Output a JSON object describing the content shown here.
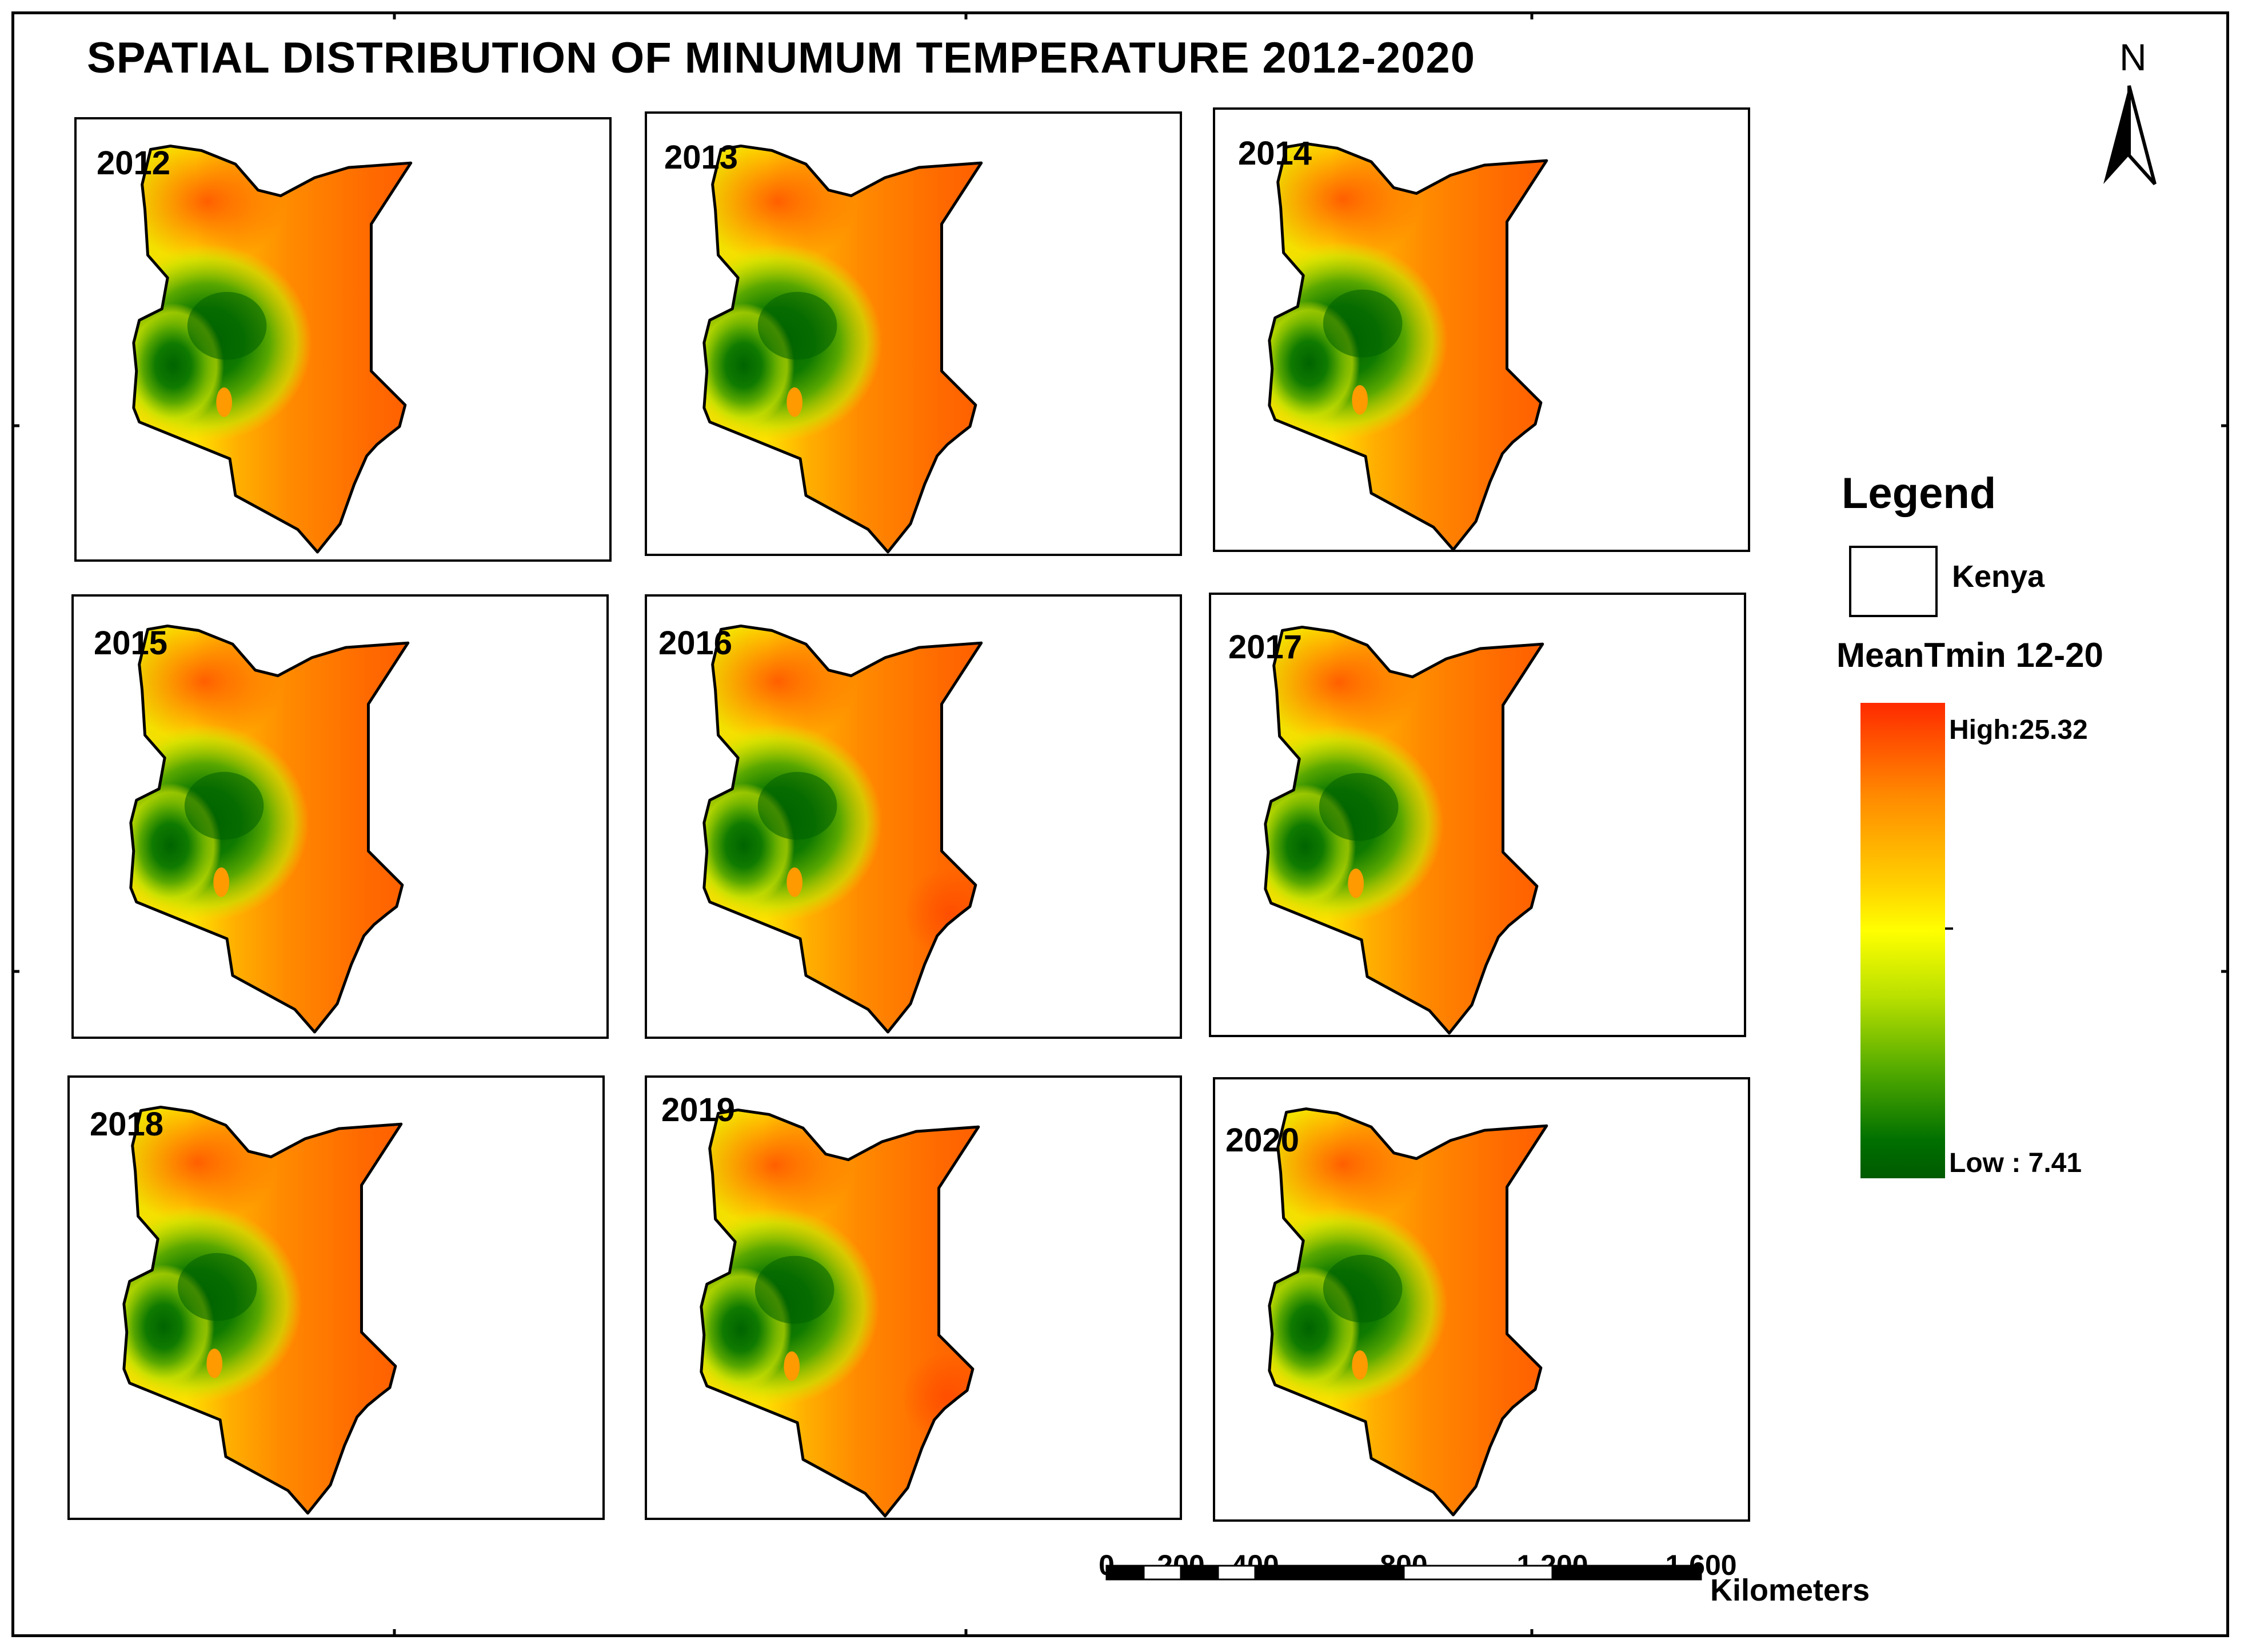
{
  "title": "SPATIAL DISTRIBUTION OF MINUMUM TEMPERATURE 2012-2020",
  "north_arrow": {
    "label": "N"
  },
  "panels": [
    {
      "year": "2012",
      "hot_coast": false
    },
    {
      "year": "2013",
      "hot_coast": false
    },
    {
      "year": "2014",
      "hot_coast": false
    },
    {
      "year": "2015",
      "hot_coast": false
    },
    {
      "year": "2016",
      "hot_coast": true
    },
    {
      "year": "2017",
      "hot_coast": false
    },
    {
      "year": "2018",
      "hot_coast": false
    },
    {
      "year": "2019",
      "hot_coast": true
    },
    {
      "year": "2020",
      "hot_coast": false
    }
  ],
  "legend": {
    "title": "Legend",
    "boundary_label": "Kenya",
    "variable_label": "MeanTmin 12-20",
    "high_label": "High:25.32",
    "low_label": "Low : 7.41",
    "high_value": 25.32,
    "low_value": 7.41,
    "ramp_colors": [
      "#ff2a00",
      "#ff8c00",
      "#ffd000",
      "#ffff00",
      "#b8e000",
      "#4fa800",
      "#007000"
    ]
  },
  "scale_bar": {
    "ticks": [
      "0",
      "200",
      "400",
      "800",
      "1,200",
      "1,600"
    ],
    "unit": "Kilometers"
  }
}
